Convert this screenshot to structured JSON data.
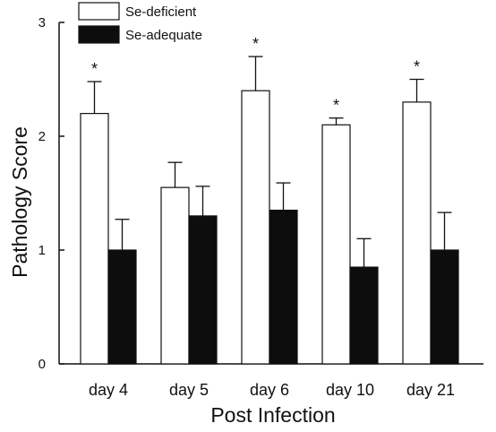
{
  "chart_data": {
    "type": "bar",
    "title": "",
    "xlabel": "Post Infection",
    "ylabel": "Pathology Score",
    "ylim": [
      0,
      3
    ],
    "yticks": [
      0,
      1,
      2,
      3
    ],
    "categories": [
      "day 4",
      "day 5",
      "day 6",
      "day 10",
      "day 21"
    ],
    "series": [
      {
        "name": "Se-deficient",
        "color": "#ffffff",
        "values": [
          2.2,
          1.55,
          2.4,
          2.1,
          2.3
        ],
        "errors": [
          0.28,
          0.22,
          0.3,
          0.06,
          0.2
        ]
      },
      {
        "name": "Se-adequate",
        "color": "#0d0d0d",
        "values": [
          1.0,
          1.3,
          1.35,
          0.85,
          1.0
        ],
        "errors": [
          0.27,
          0.26,
          0.24,
          0.25,
          0.33
        ]
      }
    ],
    "annotations": [
      {
        "category": "day 4",
        "text": "*"
      },
      {
        "category": "day 6",
        "text": "*"
      },
      {
        "category": "day 10",
        "text": "*"
      },
      {
        "category": "day 21",
        "text": "*"
      }
    ],
    "legend_position": "top-left",
    "grid": false
  }
}
